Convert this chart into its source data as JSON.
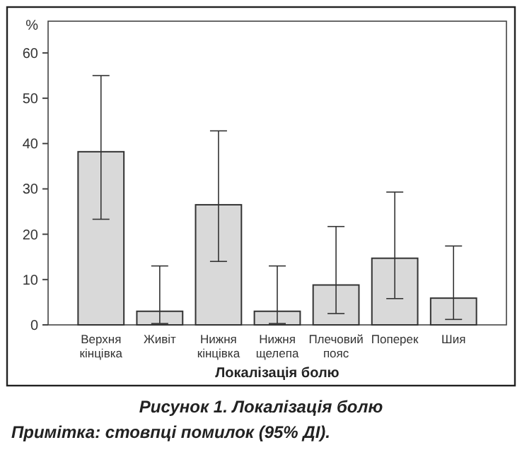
{
  "chart_data": {
    "type": "bar",
    "title": "Рисунок 1. Локалізація болю",
    "xlabel": "Локалізація болю",
    "ylabel": "%",
    "categories": [
      "Верхня кінцівка",
      "Живіт",
      "Нижня кінцівка",
      "Нижня щелепа",
      "Плечовий пояс",
      "Поперек",
      "Шия"
    ],
    "values": [
      38.2,
      3,
      26.5,
      3,
      8.8,
      14.7,
      5.9
    ],
    "errors": [
      [
        23.3,
        55
      ],
      [
        0.3,
        13
      ],
      [
        14,
        42.8
      ],
      [
        0.3,
        13
      ],
      [
        2.5,
        21.7
      ],
      [
        5.8,
        29.3
      ],
      [
        1.2,
        17.4
      ]
    ],
    "color": "#d9d9d9",
    "ylim": [
      0,
      67
    ],
    "yticks": [
      0,
      10,
      20,
      30,
      40,
      50,
      60
    ],
    "grid": false,
    "annotations": [
      "Примітка: стовпці помилок (95% ДІ)."
    ]
  }
}
